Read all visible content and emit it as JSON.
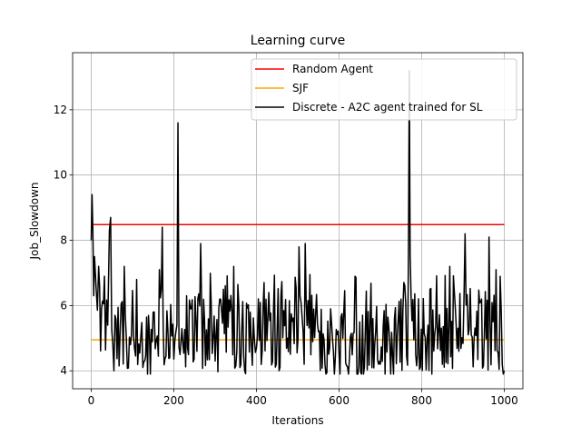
{
  "chart_data": {
    "type": "line",
    "title": "Learning curve",
    "xlabel": "Iterations",
    "ylabel": "Job_Slowdown",
    "xlim": [
      -45,
      1045
    ],
    "ylim": [
      3.45,
      13.75
    ],
    "x_ticks": [
      0,
      200,
      400,
      600,
      800,
      1000
    ],
    "y_ticks": [
      4,
      6,
      8,
      10,
      12
    ],
    "grid": true,
    "legend_position": "top-right",
    "series": [
      {
        "name": "Random Agent",
        "color": "#ff0000",
        "constant": 8.48,
        "x_range": [
          0,
          1000
        ]
      },
      {
        "name": "SJF",
        "color": "#ffa500",
        "constant": 4.95,
        "x_range": [
          0,
          1000
        ]
      },
      {
        "name": "Discrete - A2C agent trained for SL",
        "color": "#000000",
        "key_points": [
          [
            0,
            8.0
          ],
          [
            2,
            9.4
          ],
          [
            4,
            8.3
          ],
          [
            6,
            6.3
          ],
          [
            8,
            7.5
          ],
          [
            12,
            6.5
          ],
          [
            18,
            7.2
          ],
          [
            25,
            5.9
          ],
          [
            32,
            6.9
          ],
          [
            40,
            5.4
          ],
          [
            44,
            8.3
          ],
          [
            47,
            8.7
          ],
          [
            55,
            4.0
          ],
          [
            70,
            5.2
          ],
          [
            80,
            7.2
          ],
          [
            95,
            4.8
          ],
          [
            110,
            6.8
          ],
          [
            125,
            4.1
          ],
          [
            150,
            5.8
          ],
          [
            165,
            7.1
          ],
          [
            172,
            8.4
          ],
          [
            190,
            4.4
          ],
          [
            205,
            5.2
          ],
          [
            210,
            11.6
          ],
          [
            215,
            4.5
          ],
          [
            240,
            5.9
          ],
          [
            265,
            7.9
          ],
          [
            300,
            4.3
          ],
          [
            320,
            6.5
          ],
          [
            345,
            7.2
          ],
          [
            360,
            4.1
          ],
          [
            385,
            5.8
          ],
          [
            400,
            4.7
          ],
          [
            430,
            6.4
          ],
          [
            475,
            5.0
          ],
          [
            503,
            7.8
          ],
          [
            518,
            7.9
          ],
          [
            550,
            5.2
          ],
          [
            600,
            4.5
          ],
          [
            650,
            5.5
          ],
          [
            700,
            4.2
          ],
          [
            750,
            6.2
          ],
          [
            768,
            7.7
          ],
          [
            770,
            13.2
          ],
          [
            772,
            7.6
          ],
          [
            790,
            4.5
          ],
          [
            820,
            6.5
          ],
          [
            850,
            4.2
          ],
          [
            868,
            7.2
          ],
          [
            890,
            4.6
          ],
          [
            905,
            8.2
          ],
          [
            920,
            5.1
          ],
          [
            945,
            6.2
          ],
          [
            963,
            8.1
          ],
          [
            980,
            7.1
          ],
          [
            995,
            4.2
          ],
          [
            1000,
            4.0
          ]
        ]
      }
    ]
  }
}
